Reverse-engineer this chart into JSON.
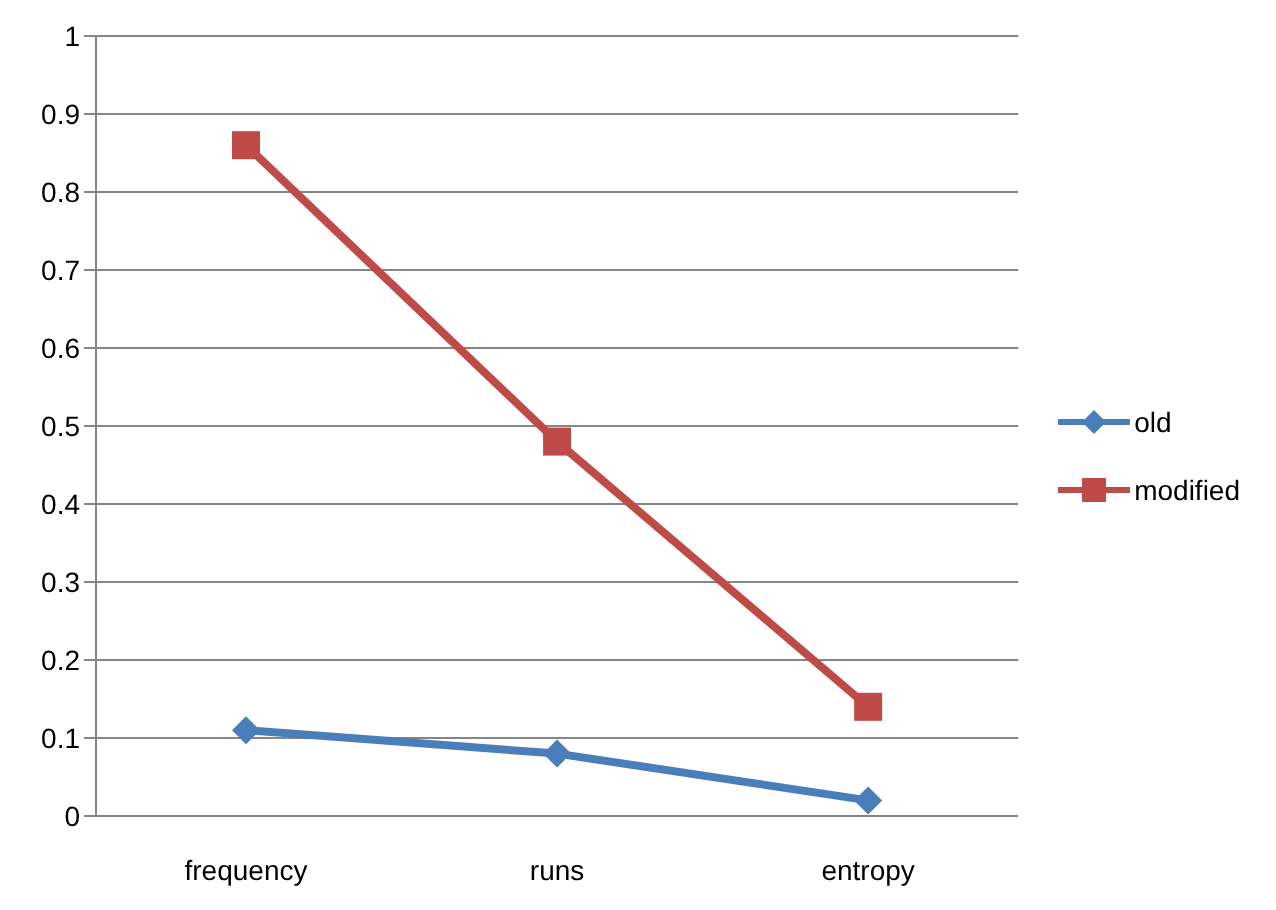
{
  "chart_data": {
    "type": "line",
    "categories": [
      "frequency",
      "runs",
      "entropy"
    ],
    "series": [
      {
        "name": "old",
        "color": "#4a7ebb",
        "values": [
          0.11,
          0.08,
          0.02
        ],
        "marker": "diamond"
      },
      {
        "name": "modified",
        "color": "#be4b48",
        "values": [
          0.86,
          0.48,
          0.14
        ],
        "marker": "square"
      }
    ],
    "ylim": [
      0,
      1
    ],
    "yticks": [
      0,
      0.1,
      0.2,
      0.3,
      0.4,
      0.5,
      0.6,
      0.7,
      0.8,
      0.9,
      1
    ],
    "grid": "y",
    "legend": "right",
    "line_style": "solid"
  }
}
